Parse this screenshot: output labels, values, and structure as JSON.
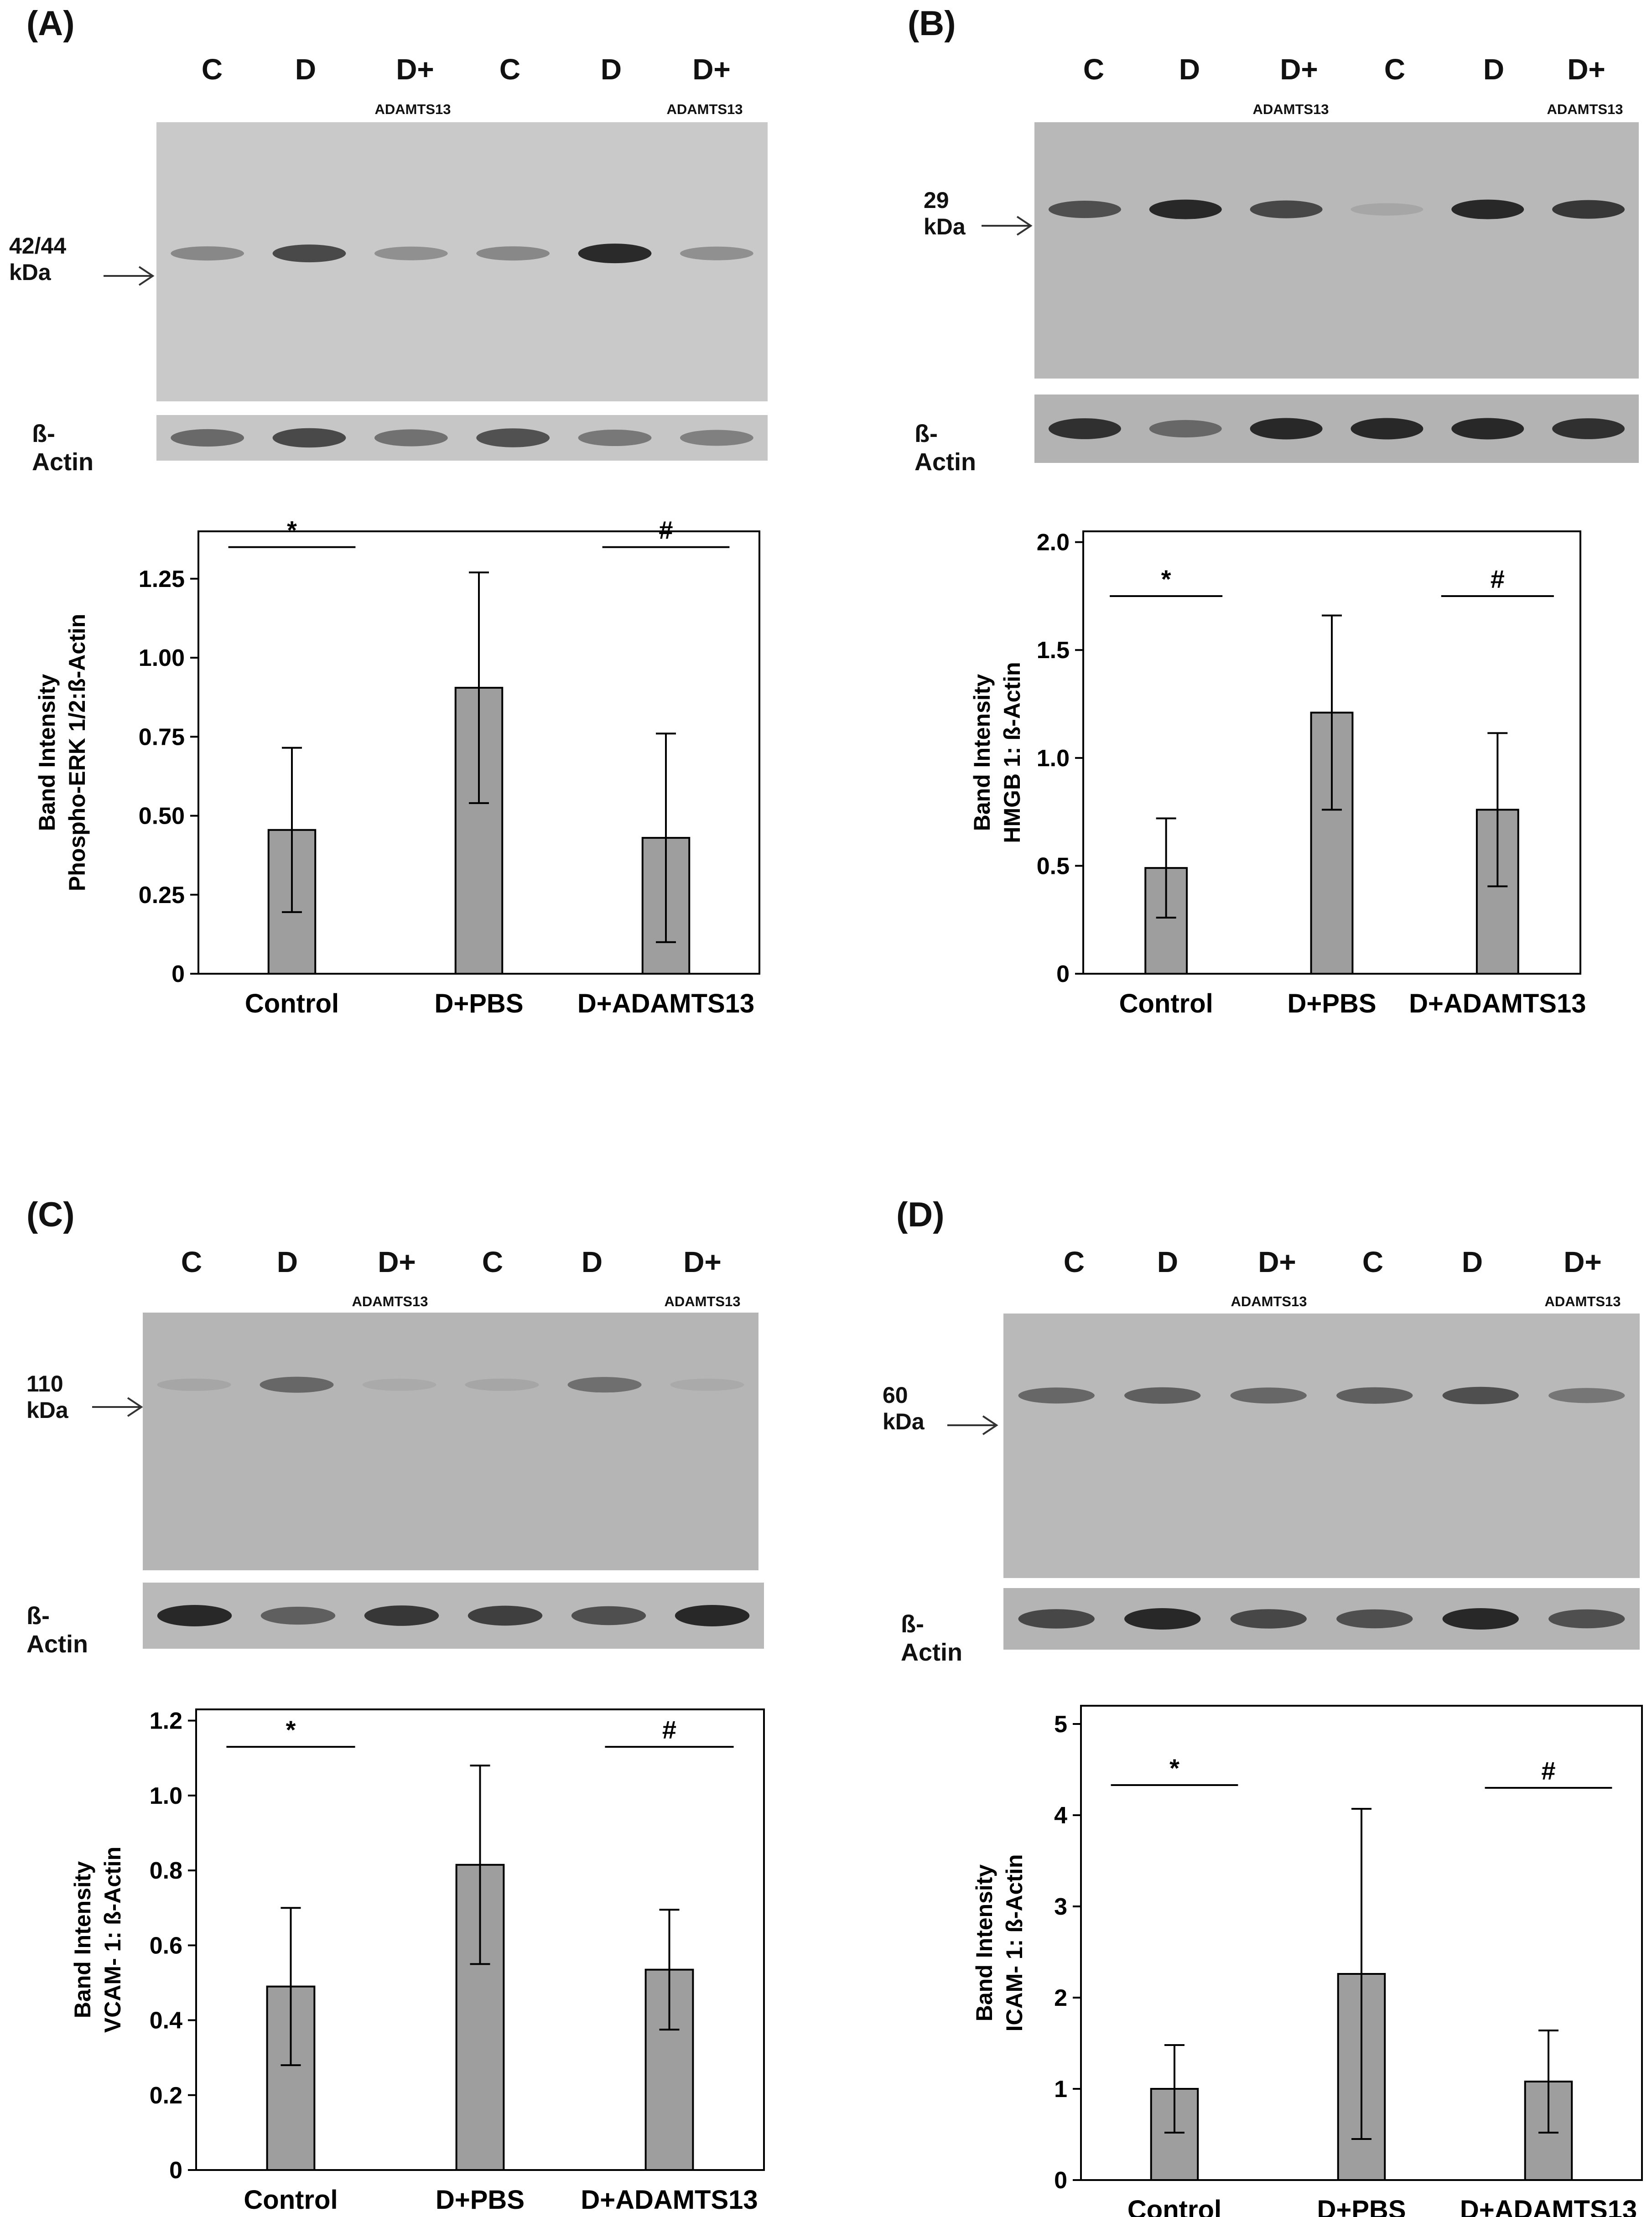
{
  "panels": [
    {
      "id": "A",
      "label": "(A)",
      "lanes": [
        "C",
        "D",
        "D+",
        "C",
        "D",
        "D+"
      ],
      "lane_sub": [
        "",
        "",
        "ADAMTS13",
        "",
        "",
        "ADAMTS13"
      ],
      "kda": "42/44 kDa",
      "actin_label": "ß-Actin",
      "band_levels": [
        0.35,
        0.75,
        0.3,
        0.35,
        0.95,
        0.3
      ],
      "actin_levels": [
        0.55,
        0.75,
        0.5,
        0.7,
        0.45,
        0.4
      ],
      "blot_colors": {
        "background": "#c9c9c9",
        "actin_background": "#c6c6c6"
      }
    },
    {
      "id": "B",
      "label": "(B)",
      "lanes": [
        "C",
        "D",
        "D+",
        "C",
        "D",
        "D+"
      ],
      "lane_sub": [
        "",
        "",
        "ADAMTS13",
        "",
        "",
        "ADAMTS13"
      ],
      "kda": "29 kDa",
      "actin_label": "ß-Actin",
      "band_levels": [
        0.7,
        0.95,
        0.75,
        0.15,
        0.95,
        0.85
      ],
      "actin_levels": [
        0.9,
        0.55,
        0.95,
        0.95,
        0.95,
        0.9
      ],
      "blot_colors": {
        "background": "#b8b8b8",
        "actin_background": "#b3b3b3"
      }
    },
    {
      "id": "C",
      "label": "(C)",
      "lanes": [
        "C",
        "D",
        "D+",
        "C",
        "D",
        "D+"
      ],
      "lane_sub": [
        "",
        "",
        "ADAMTS13",
        "",
        "",
        "ADAMTS13"
      ],
      "kda": "110 kDa",
      "actin_label": "ß-Actin",
      "band_levels": [
        0.15,
        0.55,
        0.12,
        0.15,
        0.5,
        0.12
      ],
      "actin_levels": [
        0.95,
        0.6,
        0.85,
        0.8,
        0.7,
        0.95
      ],
      "blot_colors": {
        "background": "#b5b5b5",
        "actin_background": "#b9b9b9"
      }
    },
    {
      "id": "D",
      "label": "(D)",
      "lanes": [
        "C",
        "D",
        "D+",
        "C",
        "D",
        "D+"
      ],
      "lane_sub": [
        "",
        "",
        "ADAMTS13",
        "",
        "",
        "ADAMTS13"
      ],
      "kda": "60 kDa",
      "actin_label": "ß-Actin",
      "band_levels": [
        0.55,
        0.6,
        0.55,
        0.6,
        0.7,
        0.45
      ],
      "actin_levels": [
        0.75,
        0.95,
        0.75,
        0.7,
        0.95,
        0.7
      ],
      "blot_colors": {
        "background": "#b9b9b9",
        "actin_background": "#b4b4b4"
      }
    }
  ],
  "chart_data": [
    {
      "type": "bar",
      "panel": "A",
      "categories": [
        "Control",
        "D+PBS",
        "D+ADAMTS13"
      ],
      "values": [
        0.455,
        0.905,
        0.43
      ],
      "errors": [
        0.26,
        0.365,
        0.33
      ],
      "ylabel": "Band Intensity\nPhospho-ERK 1/2:ß-Actin",
      "ylim": [
        0,
        1.4
      ],
      "yticks": [
        0,
        0.25,
        0.5,
        0.75,
        1.0,
        1.25
      ],
      "ytick_labels": [
        "0",
        "0.25",
        "0.50",
        "0.75",
        "1.00",
        "1.25"
      ],
      "significance": [
        {
          "symbol": "*",
          "from": "Control",
          "to": "Control",
          "y": 1.35
        },
        {
          "symbol": "#",
          "from": "D+ADAMTS13",
          "to": "D+ADAMTS13",
          "y": 1.35
        }
      ],
      "bar_color": "#9e9e9e",
      "grid": false
    },
    {
      "type": "bar",
      "panel": "B",
      "categories": [
        "Control",
        "D+PBS",
        "D+ADAMTS13"
      ],
      "values": [
        0.49,
        1.21,
        0.76
      ],
      "errors": [
        0.23,
        0.45,
        0.355
      ],
      "ylabel": "Band Intensity\nHMGB 1: ß-Actin",
      "ylim": [
        0,
        2.05
      ],
      "yticks": [
        0,
        0.5,
        1.0,
        1.5,
        2.0
      ],
      "ytick_labels": [
        "0",
        "0.5",
        "1.0",
        "1.5",
        "2.0"
      ],
      "significance": [
        {
          "symbol": "*",
          "from": "Control",
          "to": "Control",
          "y": 1.75
        },
        {
          "symbol": "#",
          "from": "D+ADAMTS13",
          "to": "D+ADAMTS13",
          "y": 1.75
        }
      ],
      "bar_color": "#9e9e9e",
      "grid": false
    },
    {
      "type": "bar",
      "panel": "C",
      "categories": [
        "Control",
        "D+PBS",
        "D+ADAMTS13"
      ],
      "values": [
        0.49,
        0.815,
        0.535
      ],
      "errors": [
        0.21,
        0.265,
        0.16
      ],
      "ylabel": "Band Intensity\nVCAM- 1: ß-Actin",
      "ylim": [
        0,
        1.23
      ],
      "yticks": [
        0,
        0.2,
        0.4,
        0.6,
        0.8,
        1.0,
        1.2
      ],
      "ytick_labels": [
        "0",
        "0.2",
        "0.4",
        "0.6",
        "0.8",
        "1.0",
        "1.2"
      ],
      "significance": [
        {
          "symbol": "*",
          "from": "Control",
          "to": "Control",
          "y": 1.13
        },
        {
          "symbol": "#",
          "from": "D+ADAMTS13",
          "to": "D+ADAMTS13",
          "y": 1.13
        }
      ],
      "bar_color": "#9e9e9e",
      "grid": false
    },
    {
      "type": "bar",
      "panel": "D",
      "categories": [
        "Control",
        "D+PBS",
        "D+ADAMTS13"
      ],
      "values": [
        1.0,
        2.26,
        1.08
      ],
      "errors": [
        0.48,
        1.81,
        0.56
      ],
      "ylabel": "Band Intensity\nICAM- 1: ß-Actin",
      "ylim": [
        0,
        5.2
      ],
      "yticks": [
        0,
        1,
        2,
        3,
        4,
        5
      ],
      "ytick_labels": [
        "0",
        "1",
        "2",
        "3",
        "4",
        "5"
      ],
      "significance": [
        {
          "symbol": "*",
          "from": "Control",
          "to": "Control",
          "y": 4.33
        },
        {
          "symbol": "#",
          "from": "D+ADAMTS13",
          "to": "D+ADAMTS13",
          "y": 4.3
        }
      ],
      "bar_color": "#9e9e9e",
      "grid": false
    }
  ]
}
